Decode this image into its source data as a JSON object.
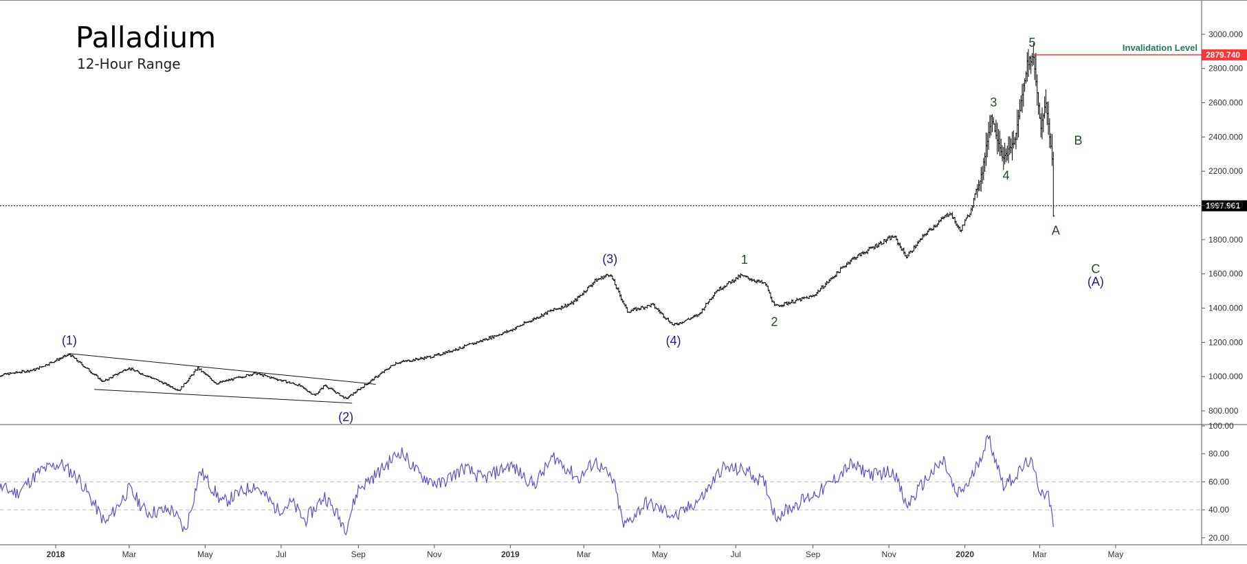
{
  "header": {
    "title": "Palladium",
    "subtitle": "12-Hour Range"
  },
  "colors": {
    "background": "#ffffff",
    "bars": "#000000",
    "wave_blue": "#1a1a9c",
    "wave_green": "#1f4d1f",
    "invalidation_line": "#ff3333",
    "invalidation_text": "#1d7a5a",
    "rsi_line": "#5a4fc9",
    "rsi_guide": "#bdbdbd"
  },
  "chart_data": [
    {
      "type": "line",
      "series_style": "ohlc-bars",
      "y_axis_ticks": [
        "3000.000",
        "2800.000",
        "2600.000",
        "2400.000",
        "2200.000",
        "2000.000",
        "1800.000",
        "1600.000",
        "1400.000",
        "1200.000",
        "1000.000",
        "800.000"
      ],
      "y_tick_values": [
        3000,
        2800,
        2600,
        2400,
        2200,
        2000,
        1800,
        1600,
        1400,
        1200,
        1000,
        800
      ],
      "ylim": [
        720,
        3120
      ],
      "x_axis_ticks": [
        {
          "label": "2018",
          "x": "2018-01",
          "bold": true
        },
        {
          "label": "Mar",
          "x": "2018-03"
        },
        {
          "label": "May",
          "x": "2018-05"
        },
        {
          "label": "Jul",
          "x": "2018-07"
        },
        {
          "label": "Sep",
          "x": "2018-09"
        },
        {
          "label": "Nov",
          "x": "2018-11"
        },
        {
          "label": "2019",
          "x": "2019-01",
          "bold": true
        },
        {
          "label": "Mar",
          "x": "2019-03"
        },
        {
          "label": "May",
          "x": "2019-05"
        },
        {
          "label": "Jul",
          "x": "2019-07"
        },
        {
          "label": "Sep",
          "x": "2019-09"
        },
        {
          "label": "Nov",
          "x": "2019-11"
        },
        {
          "label": "2020",
          "x": "2020-01",
          "bold": true
        },
        {
          "label": "Mar",
          "x": "2020-03"
        },
        {
          "label": "May",
          "x": "2020-05"
        }
      ],
      "price_path": [
        {
          "x": "2017-11-10",
          "y": 1000
        },
        {
          "x": "2017-12-15",
          "y": 1040
        },
        {
          "x": "2018-01-12",
          "y": 1130
        },
        {
          "x": "2018-02-08",
          "y": 970
        },
        {
          "x": "2018-02-28",
          "y": 1050
        },
        {
          "x": "2018-03-20",
          "y": 990
        },
        {
          "x": "2018-04-10",
          "y": 920
        },
        {
          "x": "2018-04-25",
          "y": 1050
        },
        {
          "x": "2018-05-10",
          "y": 960
        },
        {
          "x": "2018-06-10",
          "y": 1020
        },
        {
          "x": "2018-06-25",
          "y": 990
        },
        {
          "x": "2018-07-15",
          "y": 950
        },
        {
          "x": "2018-07-28",
          "y": 890
        },
        {
          "x": "2018-08-05",
          "y": 950
        },
        {
          "x": "2018-08-22",
          "y": 870
        },
        {
          "x": "2018-09-10",
          "y": 970
        },
        {
          "x": "2018-10-01",
          "y": 1080
        },
        {
          "x": "2018-11-01",
          "y": 1120
        },
        {
          "x": "2018-12-01",
          "y": 1190
        },
        {
          "x": "2019-01-01",
          "y": 1270
        },
        {
          "x": "2019-02-01",
          "y": 1380
        },
        {
          "x": "2019-02-20",
          "y": 1430
        },
        {
          "x": "2019-03-10",
          "y": 1560
        },
        {
          "x": "2019-03-22",
          "y": 1600
        },
        {
          "x": "2019-04-05",
          "y": 1380
        },
        {
          "x": "2019-04-25",
          "y": 1420
        },
        {
          "x": "2019-05-12",
          "y": 1300
        },
        {
          "x": "2019-06-01",
          "y": 1360
        },
        {
          "x": "2019-06-15",
          "y": 1500
        },
        {
          "x": "2019-07-05",
          "y": 1590
        },
        {
          "x": "2019-07-25",
          "y": 1540
        },
        {
          "x": "2019-08-01",
          "y": 1410
        },
        {
          "x": "2019-09-01",
          "y": 1470
        },
        {
          "x": "2019-10-01",
          "y": 1680
        },
        {
          "x": "2019-10-25",
          "y": 1780
        },
        {
          "x": "2019-11-05",
          "y": 1820
        },
        {
          "x": "2019-11-15",
          "y": 1700
        },
        {
          "x": "2019-12-01",
          "y": 1840
        },
        {
          "x": "2019-12-20",
          "y": 1960
        },
        {
          "x": "2019-12-28",
          "y": 1850
        },
        {
          "x": "2020-01-05",
          "y": 1960
        },
        {
          "x": "2020-01-15",
          "y": 2200
        },
        {
          "x": "2020-01-22",
          "y": 2520
        },
        {
          "x": "2020-02-01",
          "y": 2270
        },
        {
          "x": "2020-02-10",
          "y": 2380
        },
        {
          "x": "2020-02-20",
          "y": 2830
        },
        {
          "x": "2020-02-25",
          "y": 2870
        },
        {
          "x": "2020-03-02",
          "y": 2450
        },
        {
          "x": "2020-03-06",
          "y": 2600
        },
        {
          "x": "2020-03-11",
          "y": 2280
        },
        {
          "x": "2020-03-12",
          "y": 1940
        }
      ],
      "channel_lines": [
        {
          "from": {
            "x": "2018-01-12",
            "y": 1135
          },
          "to": {
            "x": "2018-09-15",
            "y": 955
          }
        },
        {
          "from": {
            "x": "2018-02-01",
            "y": 925
          },
          "to": {
            "x": "2018-08-27",
            "y": 845
          }
        }
      ],
      "last_price": {
        "label": "1997.961",
        "value": 1997.961
      },
      "invalidation": {
        "label": "Invalidation Level",
        "value_label": "2879.740",
        "value": 2879.74,
        "from": "2020-02-26"
      },
      "wave_labels": [
        {
          "text": "(1)",
          "x": "2018-01-12",
          "y": 1140,
          "color": "blue",
          "pos": "above"
        },
        {
          "text": "(2)",
          "x": "2018-08-22",
          "y": 845,
          "color": "blue",
          "pos": "below"
        },
        {
          "text": "(3)",
          "x": "2019-03-22",
          "y": 1615,
          "color": "blue",
          "pos": "above"
        },
        {
          "text": "(4)",
          "x": "2019-05-12",
          "y": 1290,
          "color": "blue",
          "pos": "below"
        },
        {
          "text": "1",
          "x": "2019-07-08",
          "y": 1610,
          "color": "green",
          "pos": "above"
        },
        {
          "text": "2",
          "x": "2019-08-01",
          "y": 1400,
          "color": "green",
          "pos": "below"
        },
        {
          "text": "3",
          "x": "2020-01-24",
          "y": 2530,
          "color": "green",
          "pos": "above"
        },
        {
          "text": "4",
          "x": "2020-02-03",
          "y": 2255,
          "color": "green",
          "pos": "below"
        },
        {
          "text": "5",
          "x": "2020-02-24",
          "y": 2880,
          "color": "green",
          "pos": "above"
        },
        {
          "text": "A",
          "x": "2020-03-14",
          "y": 1935,
          "color": "green",
          "pos": "below"
        },
        {
          "text": "B",
          "x": "2020-04-01",
          "y": 2380,
          "color": "green",
          "pos": "at"
        },
        {
          "text": "C",
          "x": "2020-04-15",
          "y": 1630,
          "color": "green",
          "pos": "at"
        },
        {
          "text": "(A)",
          "x": "2020-04-15",
          "y": 1555,
          "color": "blue",
          "pos": "at"
        }
      ]
    },
    {
      "type": "line",
      "name": "RSI",
      "y_axis_ticks": [
        "100.00",
        "80.00",
        "60.00",
        "40.00",
        "20.00"
      ],
      "y_tick_values": [
        100,
        80,
        60,
        40,
        20
      ],
      "ylim": [
        15,
        100
      ],
      "guides": [
        60,
        40
      ],
      "values": [
        {
          "x": "2017-11-10",
          "y": 58
        },
        {
          "x": "2017-12-01",
          "y": 52
        },
        {
          "x": "2017-12-20",
          "y": 68
        },
        {
          "x": "2018-01-05",
          "y": 73
        },
        {
          "x": "2018-01-20",
          "y": 62
        },
        {
          "x": "2018-02-10",
          "y": 30
        },
        {
          "x": "2018-03-01",
          "y": 55
        },
        {
          "x": "2018-03-15",
          "y": 38
        },
        {
          "x": "2018-04-05",
          "y": 40
        },
        {
          "x": "2018-04-15",
          "y": 24
        },
        {
          "x": "2018-04-27",
          "y": 68
        },
        {
          "x": "2018-05-15",
          "y": 45
        },
        {
          "x": "2018-06-10",
          "y": 58
        },
        {
          "x": "2018-06-28",
          "y": 40
        },
        {
          "x": "2018-07-10",
          "y": 45
        },
        {
          "x": "2018-07-20",
          "y": 32
        },
        {
          "x": "2018-08-05",
          "y": 50
        },
        {
          "x": "2018-08-22",
          "y": 27
        },
        {
          "x": "2018-09-01",
          "y": 55
        },
        {
          "x": "2018-09-15",
          "y": 65
        },
        {
          "x": "2018-10-05",
          "y": 82
        },
        {
          "x": "2018-10-20",
          "y": 65
        },
        {
          "x": "2018-11-05",
          "y": 58
        },
        {
          "x": "2018-11-25",
          "y": 70
        },
        {
          "x": "2018-12-10",
          "y": 62
        },
        {
          "x": "2019-01-01",
          "y": 72
        },
        {
          "x": "2019-01-20",
          "y": 58
        },
        {
          "x": "2019-02-05",
          "y": 78
        },
        {
          "x": "2019-02-25",
          "y": 62
        },
        {
          "x": "2019-03-10",
          "y": 75
        },
        {
          "x": "2019-03-25",
          "y": 60
        },
        {
          "x": "2019-04-02",
          "y": 28
        },
        {
          "x": "2019-04-20",
          "y": 45
        },
        {
          "x": "2019-05-15",
          "y": 35
        },
        {
          "x": "2019-06-05",
          "y": 50
        },
        {
          "x": "2019-06-20",
          "y": 70
        },
        {
          "x": "2019-07-10",
          "y": 68
        },
        {
          "x": "2019-07-25",
          "y": 58
        },
        {
          "x": "2019-08-02",
          "y": 35
        },
        {
          "x": "2019-08-20",
          "y": 45
        },
        {
          "x": "2019-09-10",
          "y": 55
        },
        {
          "x": "2019-10-01",
          "y": 72
        },
        {
          "x": "2019-10-20",
          "y": 65
        },
        {
          "x": "2019-11-05",
          "y": 68
        },
        {
          "x": "2019-11-15",
          "y": 42
        },
        {
          "x": "2019-12-01",
          "y": 62
        },
        {
          "x": "2019-12-15",
          "y": 75
        },
        {
          "x": "2019-12-25",
          "y": 50
        },
        {
          "x": "2020-01-05",
          "y": 60
        },
        {
          "x": "2020-01-20",
          "y": 92
        },
        {
          "x": "2020-02-01",
          "y": 58
        },
        {
          "x": "2020-02-12",
          "y": 65
        },
        {
          "x": "2020-02-22",
          "y": 76
        },
        {
          "x": "2020-03-01",
          "y": 55
        },
        {
          "x": "2020-03-08",
          "y": 50
        },
        {
          "x": "2020-03-12",
          "y": 30
        }
      ]
    }
  ]
}
